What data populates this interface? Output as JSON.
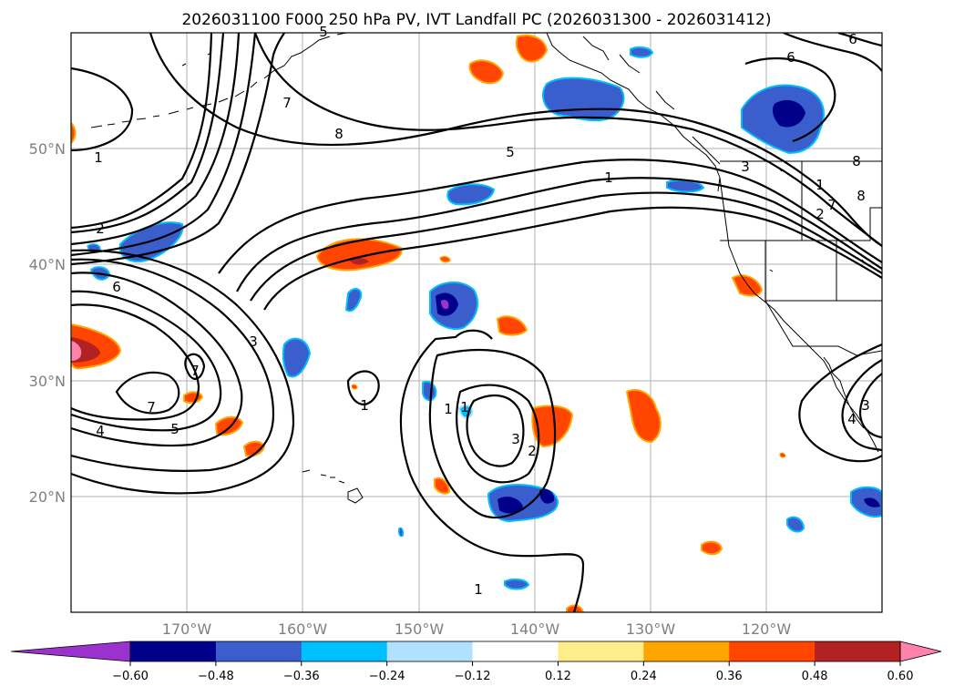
{
  "title": "2026031100 F000 250 hPa PV, IVT Landfall PC (2026031300 - 2026031412)",
  "map": {
    "lon_range": [
      -180,
      -110
    ],
    "lat_range": [
      10,
      60
    ],
    "lat_labels": [
      "50°N",
      "40°N",
      "30°N",
      "20°N"
    ],
    "lon_labels": [
      "170°W",
      "160°W",
      "150°W",
      "140°W",
      "130°W",
      "120°W"
    ],
    "contour_labels": [
      "1",
      "8",
      "7",
      "1",
      "2",
      "6",
      "3",
      "7",
      "7",
      "5",
      "4",
      "5",
      "1",
      "1",
      "2",
      "3",
      "1",
      "8",
      "6",
      "6",
      "8",
      "7",
      "4",
      "3",
      "2",
      "1",
      "1",
      "3",
      "5"
    ]
  },
  "colorbar": {
    "ticks": [
      "−0.60",
      "−0.48",
      "−0.36",
      "−0.24",
      "−0.12",
      "0.12",
      "0.24",
      "0.36",
      "0.48",
      "0.60"
    ],
    "colors": [
      "#9a32cd",
      "#00008b",
      "#3a5fcd",
      "#00bfff",
      "#b0e2ff",
      "#ffffff",
      "#ffec8b",
      "#ffa500",
      "#ff4500",
      "#b22222",
      "#ff82ab"
    ]
  },
  "colors": {
    "purple": "#9a32cd",
    "navy": "#00008b",
    "royal": "#3a5fcd",
    "sky": "#00bfff",
    "pale_blue": "#b0e2ff",
    "pale_yellow": "#ffec8b",
    "orange": "#ffa500",
    "red_orange": "#ff4500",
    "firebrick": "#b22222",
    "pink": "#ff82ab"
  }
}
